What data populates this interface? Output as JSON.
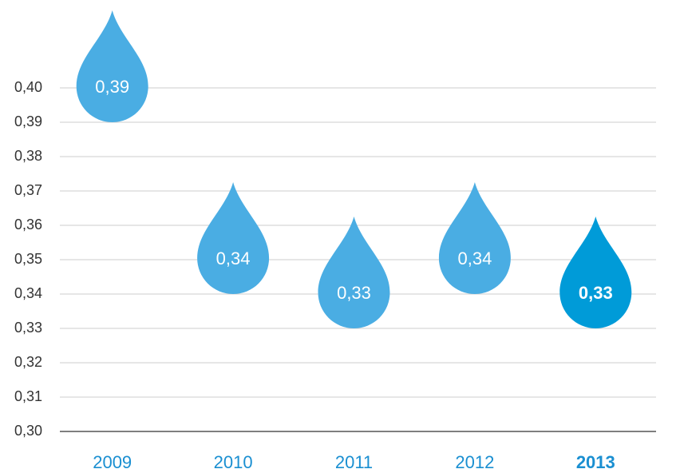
{
  "chart_data": {
    "type": "drop",
    "categories": [
      "2009",
      "2010",
      "2011",
      "2012",
      "2013"
    ],
    "values": [
      0.39,
      0.34,
      0.33,
      0.34,
      0.33
    ],
    "value_labels": [
      "0,39",
      "0,34",
      "0,33",
      "0,34",
      "0,33"
    ],
    "colors": [
      "#4aade3",
      "#4aade3",
      "#4aade3",
      "#4aade3",
      "#009bd8"
    ],
    "highlight": "2013",
    "ylim": [
      0.3,
      0.4
    ],
    "yticks": [
      {
        "value": 0.3,
        "label": "0,30"
      },
      {
        "value": 0.31,
        "label": "0,31"
      },
      {
        "value": 0.32,
        "label": "0,32"
      },
      {
        "value": 0.33,
        "label": "0,33"
      },
      {
        "value": 0.34,
        "label": "0,34"
      },
      {
        "value": 0.35,
        "label": "0,35"
      },
      {
        "value": 0.36,
        "label": "0,36"
      },
      {
        "value": 0.37,
        "label": "0,37"
      },
      {
        "value": 0.38,
        "label": "0,38"
      },
      {
        "value": 0.39,
        "label": "0,39"
      },
      {
        "value": 0.4,
        "label": "0,40"
      }
    ],
    "grid": true
  }
}
